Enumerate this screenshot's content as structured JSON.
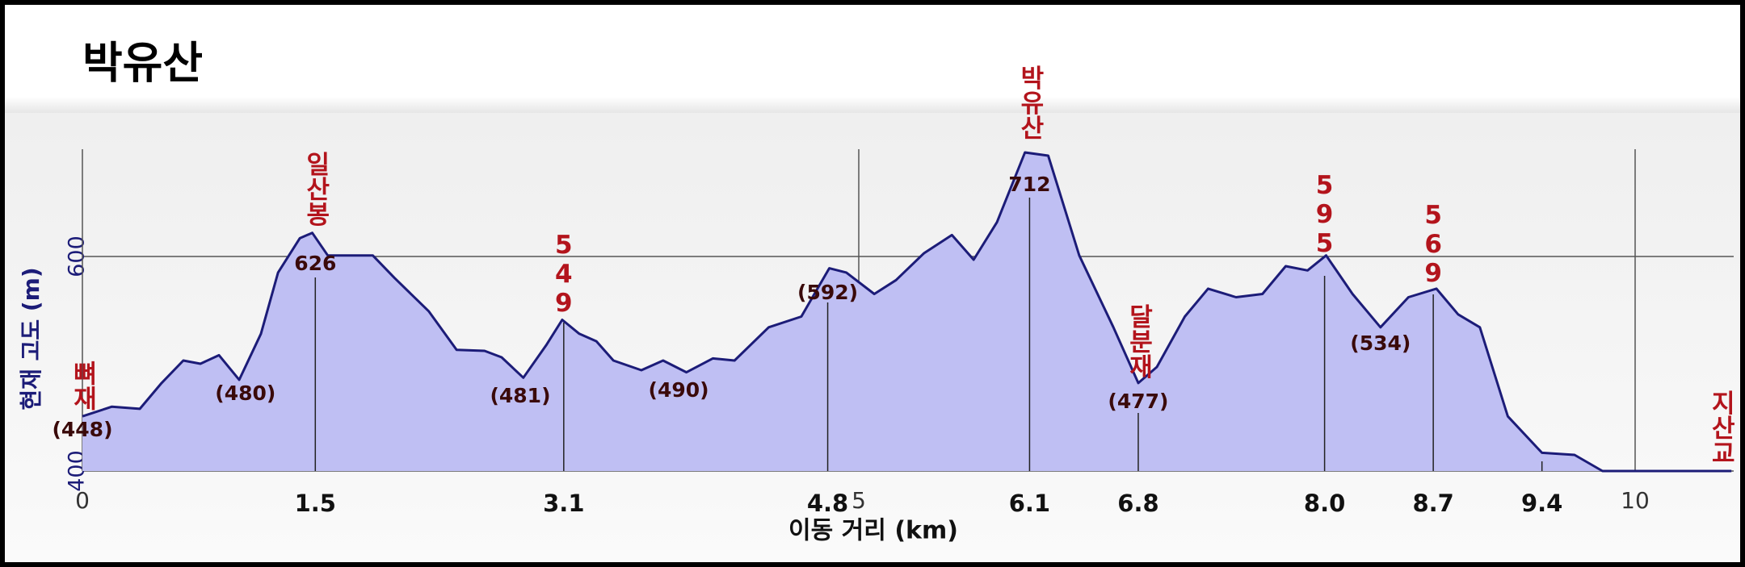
{
  "chart_data": {
    "type": "area",
    "title": "박유산",
    "x_label": "이동 거리 (km)",
    "y_label": "현재 고도 (m)",
    "xlim": [
      0,
      10.62
    ],
    "ylim": [
      400,
      700
    ],
    "xticks": [
      0,
      5,
      10
    ],
    "yticks": [
      400,
      600
    ],
    "grid": true,
    "x": [
      0,
      0.19,
      0.37,
      0.51,
      0.65,
      0.76,
      0.88,
      1.01,
      1.15,
      1.26,
      1.4,
      1.48,
      1.58,
      1.87,
      2.01,
      2.23,
      2.41,
      2.59,
      2.7,
      2.84,
      2.99,
      3.09,
      3.2,
      3.31,
      3.42,
      3.6,
      3.74,
      3.89,
      4.06,
      4.2,
      4.42,
      4.63,
      4.81,
      4.92,
      5.1,
      5.24,
      5.42,
      5.6,
      5.74,
      5.89,
      6.07,
      6.22,
      6.42,
      6.64,
      6.8,
      6.92,
      7.1,
      7.25,
      7.43,
      7.6,
      7.75,
      7.89,
      8.01,
      8.18,
      8.36,
      8.54,
      8.72,
      8.86,
      9.0,
      9.18,
      9.4,
      9.61,
      9.79,
      10.62
    ],
    "series": [
      {
        "name": "고도",
        "color": "#1c1c78",
        "fill": "#bfbff3",
        "values": [
          451,
          460,
          458,
          482,
          503,
          500,
          508,
          485,
          528,
          585,
          617,
          622,
          601,
          601,
          580,
          549,
          513,
          512,
          506,
          487,
          518,
          541,
          528,
          521,
          503,
          494,
          503,
          492,
          505,
          503,
          534,
          544,
          589,
          585,
          565,
          578,
          603,
          620,
          597,
          632,
          697,
          694,
          601,
          534,
          482,
          497,
          544,
          570,
          562,
          565,
          591,
          587,
          601,
          565,
          534,
          562,
          570,
          546,
          534,
          451,
          417,
          415,
          400,
          400
        ]
      }
    ],
    "waypoints": [
      {
        "x": 0,
        "name": "뼈재",
        "elevation": "(448)"
      },
      {
        "x": 1.05,
        "elevation": "(480)"
      },
      {
        "x": 1.5,
        "x_label": "1.5",
        "name": "일산봉",
        "elevation": "626"
      },
      {
        "x": 2.82,
        "elevation": "(481)"
      },
      {
        "x": 3.1,
        "x_label": "3.1",
        "name": "549"
      },
      {
        "x": 3.84,
        "elevation": "(490)"
      },
      {
        "x": 4.8,
        "x_label": "4.8",
        "elevation": "(592)"
      },
      {
        "x": 6.1,
        "x_label": "6.1",
        "name": "박유산",
        "elevation": "712"
      },
      {
        "x": 6.8,
        "x_label": "6.8",
        "name": "달분재",
        "elevation": "(477)"
      },
      {
        "x": 8.0,
        "x_label": "8.0",
        "name": "595"
      },
      {
        "x": 8.36,
        "elevation": "(534)"
      },
      {
        "x": 8.7,
        "x_label": "8.7",
        "name": "569"
      },
      {
        "x": 9.4,
        "x_label": "9.4"
      },
      {
        "x": 10.55,
        "name": "지산교"
      }
    ]
  }
}
